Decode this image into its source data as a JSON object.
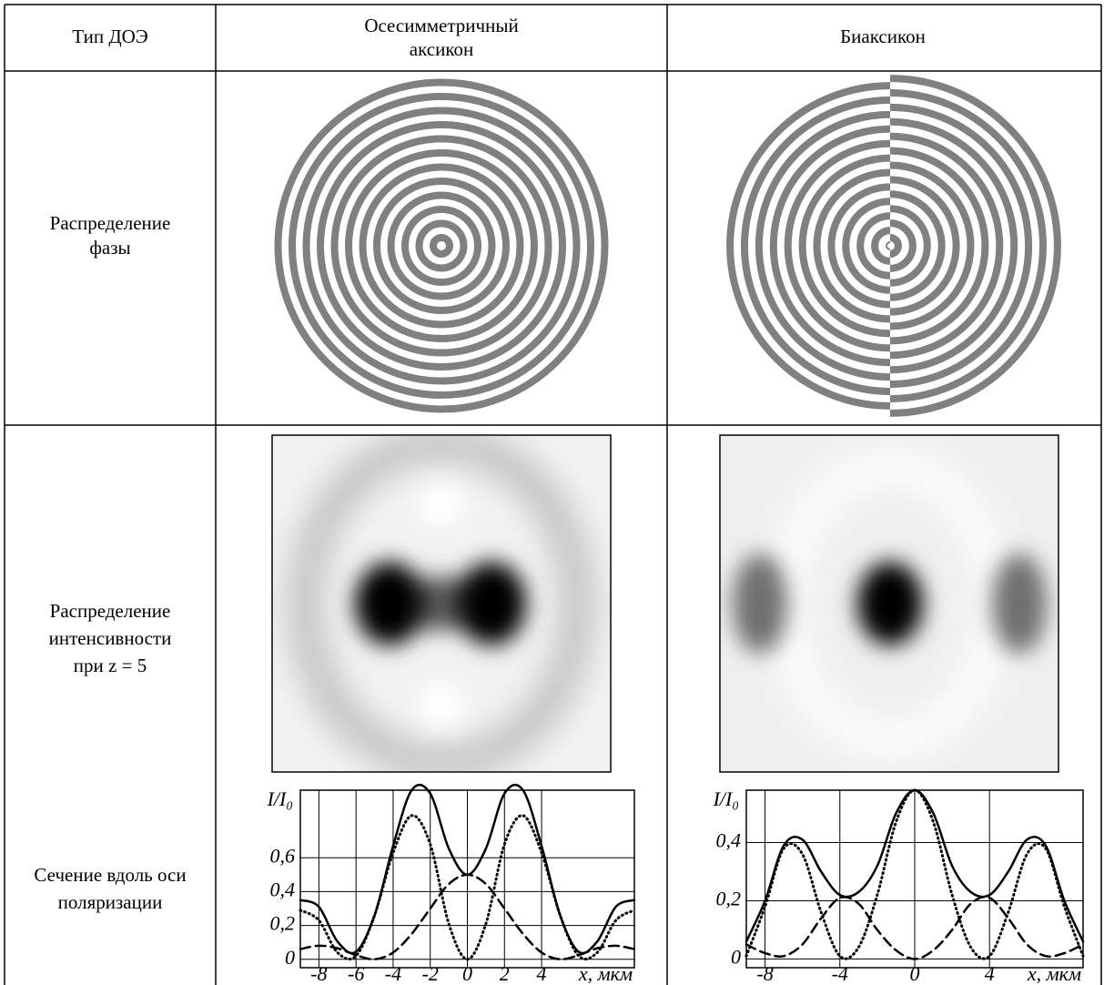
{
  "table": {
    "header": [
      "Тип ДОЭ",
      [
        "Осесимметричный",
        "аксикон"
      ],
      "Биаксикон"
    ],
    "rows": [
      {
        "label": [
          "Распределение",
          "фазы"
        ]
      },
      {
        "label": [
          "Распределение",
          "интенсивности",
          "при z = 5"
        ]
      },
      {
        "label": [
          "Сечение вдоль оси",
          "поляризации"
        ]
      }
    ]
  },
  "chart_data": [
    {
      "type": "line",
      "x": [
        -9,
        -8,
        -7,
        -6,
        -5,
        -4,
        -3,
        -2,
        -1,
        0,
        1,
        2,
        3,
        4,
        5,
        6,
        7,
        8,
        9
      ],
      "series": [
        {
          "style": "solid",
          "color": "#000000",
          "values": [
            0.35,
            0.31,
            0.105,
            0.044,
            0.26,
            0.67,
            1.0,
            0.98,
            0.655,
            0.5,
            0.655,
            0.98,
            1.0,
            0.67,
            0.26,
            0.044,
            0.105,
            0.31,
            0.35
          ]
        },
        {
          "style": "dotted",
          "color": "#000000",
          "values": [
            0.29,
            0.23,
            0.04,
            0.02,
            0.26,
            0.63,
            0.85,
            0.68,
            0.21,
            0,
            0.21,
            0.68,
            0.85,
            0.63,
            0.26,
            0.02,
            0.04,
            0.23,
            0.29
          ]
        },
        {
          "style": "dashed",
          "color": "#000000",
          "values": [
            0.06,
            0.08,
            0.065,
            0.024,
            0,
            0.04,
            0.15,
            0.3,
            0.445,
            0.5,
            0.445,
            0.3,
            0.15,
            0.04,
            0,
            0.024,
            0.065,
            0.08,
            0.06
          ]
        }
      ],
      "xlim": [
        -9,
        9
      ],
      "ylim": [
        -0.05,
        1.0
      ],
      "xticks": [
        -8,
        -6,
        -4,
        -2,
        0,
        2,
        4
      ],
      "yticks": [
        0,
        {
          "value": 0.2,
          "label": "0,2"
        },
        {
          "value": 0.4,
          "label": "0,4"
        },
        {
          "value": 0.6,
          "label": "0,6"
        }
      ],
      "xlabel": "x, мкм",
      "ylabel": "I/I₀",
      "grid": true
    },
    {
      "type": "line",
      "x": [
        -9,
        -8,
        -7,
        -6,
        -5,
        -4,
        -3,
        -2,
        -1,
        0,
        1,
        2,
        3,
        4,
        5,
        6,
        7,
        8,
        9
      ],
      "series": [
        {
          "style": "solid",
          "color": "#000000",
          "values": [
            0.06,
            0.2,
            0.39,
            0.41,
            0.3,
            0.22,
            0.23,
            0.32,
            0.5,
            0.58,
            0.5,
            0.32,
            0.23,
            0.22,
            0.3,
            0.41,
            0.39,
            0.2,
            0.06
          ]
        },
        {
          "style": "dotted",
          "color": "#000000",
          "values": [
            0.01,
            0.18,
            0.38,
            0.36,
            0.16,
            0.01,
            0.04,
            0.22,
            0.47,
            0.58,
            0.47,
            0.22,
            0.04,
            0.01,
            0.16,
            0.36,
            0.38,
            0.18,
            0.01
          ]
        },
        {
          "style": "dashed",
          "color": "#000000",
          "values": [
            0.05,
            0.02,
            0.01,
            0.05,
            0.14,
            0.21,
            0.19,
            0.1,
            0.03,
            0,
            0.03,
            0.1,
            0.19,
            0.21,
            0.14,
            0.05,
            0.01,
            0.02,
            0.05
          ]
        }
      ],
      "xlim": [
        -9,
        9
      ],
      "ylim": [
        -0.03,
        0.58
      ],
      "xticks": [
        -8,
        -4,
        0,
        4
      ],
      "yticks": [
        0,
        {
          "value": 0.2,
          "label": "0,2"
        },
        {
          "value": 0.4,
          "label": "0,4"
        }
      ],
      "xlabel": "x, мкм",
      "ylabel": "I/I₀",
      "grid": true
    }
  ]
}
